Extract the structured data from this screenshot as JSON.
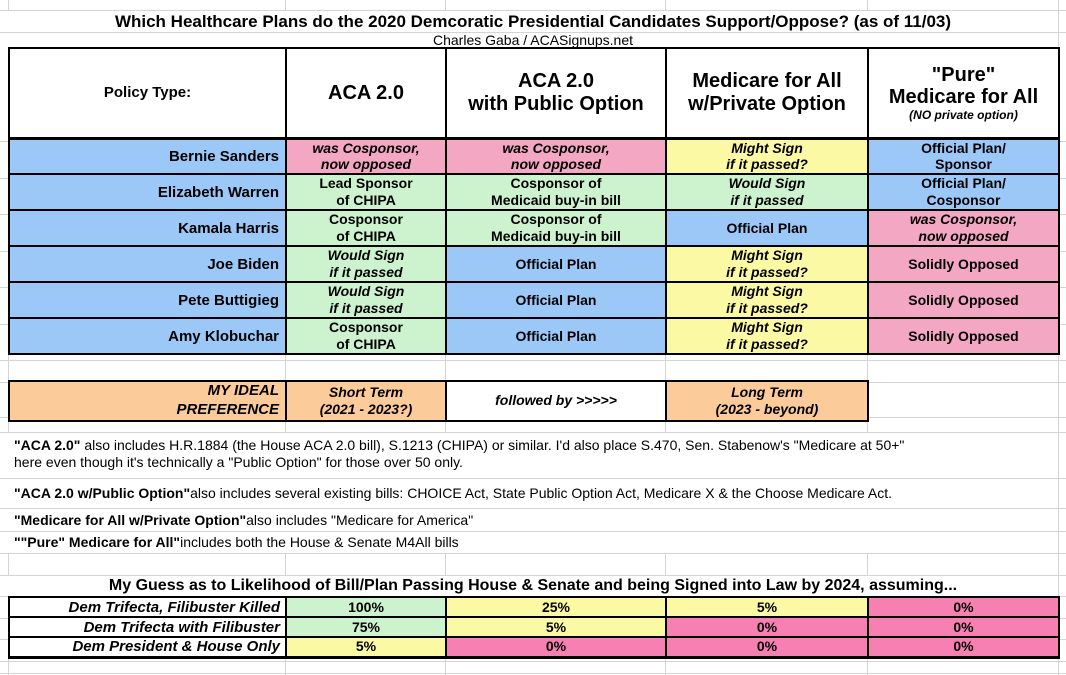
{
  "colors": {
    "blue": "#9CC8F8",
    "green": "#CDF2CE",
    "yellow": "#FCF9A4",
    "pink": "#F4A7C3",
    "pink_strong": "#F780B2",
    "orange": "#FCCB9A",
    "white": "#FFFFFF",
    "gridline": "#d4d4d4"
  },
  "chart_data": [
    {
      "id": "support_matrix",
      "type": "table",
      "title": "Which Healthcare Plans do the 2020 Demcoratic Presidential Candidates Support/Oppose? (as of 11/03)",
      "subtitle": "Charles Gaba / ACASignups.net",
      "header": {
        "corner": "Policy Type:",
        "policies": [
          {
            "label": "ACA 2.0",
            "note": ""
          },
          {
            "label": "ACA 2.0\nwith Public Option",
            "note": ""
          },
          {
            "label": "Medicare for All\nw/Private Option",
            "note": ""
          },
          {
            "label": "\"Pure\"\nMedicare for All",
            "note": "(NO private option)"
          }
        ]
      },
      "rows": [
        {
          "candidate": "Bernie Sanders",
          "cells": [
            {
              "text": "was Cosponsor,\nnow opposed",
              "color": "pink",
              "italic": true
            },
            {
              "text": "was Cosponsor,\nnow opposed",
              "color": "pink",
              "italic": true
            },
            {
              "text": "Might Sign\nif it passed?",
              "color": "yellow",
              "italic": true
            },
            {
              "text": "Official Plan/\nSponsor",
              "color": "blue",
              "italic": false
            }
          ]
        },
        {
          "candidate": "Elizabeth Warren",
          "cells": [
            {
              "text": "Lead Sponsor\nof CHIPA",
              "color": "green",
              "italic": false
            },
            {
              "text": "Cosponsor of\nMedicaid buy-in bill",
              "color": "green",
              "italic": false
            },
            {
              "text": "Would Sign\nif it passed",
              "color": "green",
              "italic": true
            },
            {
              "text": "Official Plan/\nCosponsor",
              "color": "blue",
              "italic": false
            }
          ]
        },
        {
          "candidate": "Kamala Harris",
          "cells": [
            {
              "text": "Cosponsor\nof CHIPA",
              "color": "green",
              "italic": false
            },
            {
              "text": "Cosponsor of\nMedicaid buy-in bill",
              "color": "green",
              "italic": false
            },
            {
              "text": "Official Plan",
              "color": "blue",
              "italic": false
            },
            {
              "text": "was Cosponsor,\nnow opposed",
              "color": "pink",
              "italic": true
            }
          ]
        },
        {
          "candidate": "Joe Biden",
          "cells": [
            {
              "text": "Would Sign\nif it passed",
              "color": "green",
              "italic": true
            },
            {
              "text": "Official Plan",
              "color": "blue",
              "italic": false
            },
            {
              "text": "Might Sign\nif it passed?",
              "color": "yellow",
              "italic": true
            },
            {
              "text": "Solidly Opposed",
              "color": "pink",
              "italic": false
            }
          ]
        },
        {
          "candidate": "Pete Buttigieg",
          "cells": [
            {
              "text": "Would Sign\nif it passed",
              "color": "green",
              "italic": true
            },
            {
              "text": "Official Plan",
              "color": "blue",
              "italic": false
            },
            {
              "text": "Might Sign\nif it passed?",
              "color": "yellow",
              "italic": true
            },
            {
              "text": "Solidly Opposed",
              "color": "pink",
              "italic": false
            }
          ]
        },
        {
          "candidate": "Amy Klobuchar",
          "cells": [
            {
              "text": "Cosponsor\nof CHIPA",
              "color": "green",
              "italic": false
            },
            {
              "text": "Official Plan",
              "color": "blue",
              "italic": false
            },
            {
              "text": "Might Sign\nif it passed?",
              "color": "yellow",
              "italic": true
            },
            {
              "text": "Solidly Opposed",
              "color": "pink",
              "italic": false
            }
          ]
        }
      ]
    },
    {
      "id": "likelihood",
      "type": "table",
      "title": "My Guess as to Likelihood of Bill/Plan Passing House & Senate and being Signed into Law by 2024, assuming...",
      "rows": [
        {
          "scenario": "Dem Trifecta, Filibuster Killed",
          "values": [
            {
              "text": "100%",
              "color": "green"
            },
            {
              "text": "25%",
              "color": "yellow"
            },
            {
              "text": "5%",
              "color": "yellow"
            },
            {
              "text": "0%",
              "color": "pink_strong"
            }
          ]
        },
        {
          "scenario": "Dem Trifecta with Filibuster",
          "values": [
            {
              "text": "75%",
              "color": "green"
            },
            {
              "text": "5%",
              "color": "yellow"
            },
            {
              "text": "0%",
              "color": "pink_strong"
            },
            {
              "text": "0%",
              "color": "pink_strong"
            }
          ]
        },
        {
          "scenario": "Dem President & House Only",
          "values": [
            {
              "text": "5%",
              "color": "yellow"
            },
            {
              "text": "0%",
              "color": "pink_strong"
            },
            {
              "text": "0%",
              "color": "pink_strong"
            },
            {
              "text": "0%",
              "color": "pink_strong"
            }
          ]
        }
      ]
    }
  ],
  "preference_row": {
    "label": "MY IDEAL\nPREFERENCE",
    "cells": [
      {
        "text": "Short Term\n(2021 - 2023?)",
        "color": "orange"
      },
      {
        "text": "followed by >>>>>",
        "color": "white"
      },
      {
        "text": "Long Term\n(2023 - beyond)",
        "color": "orange"
      },
      {
        "text": "",
        "color": "none"
      }
    ]
  },
  "footnotes": [
    {
      "lead": "\"ACA 2.0\"",
      "rest": " also includes H.R.1884 (the House ACA 2.0 bill), S.1213 (CHIPA) or similar. I'd also place S.470, Sen. Stabenow's \"Medicare at 50+\"\nhere even though it's technically a \"Public Option\" for those over 50 only."
    },
    {
      "lead": "\"ACA 2.0 w/Public Option\"",
      "rest": " also includes several existing bills: CHOICE Act, State Public Option Act, Medicare X & the Choose Medicare Act."
    },
    {
      "lead": "\"Medicare for All w/Private Option\"",
      "rest": " also includes \"Medicare for America\""
    },
    {
      "lead": "\"\"Pure\" Medicare for All\"",
      "rest": " includes both the House & Senate M4All bills"
    }
  ]
}
